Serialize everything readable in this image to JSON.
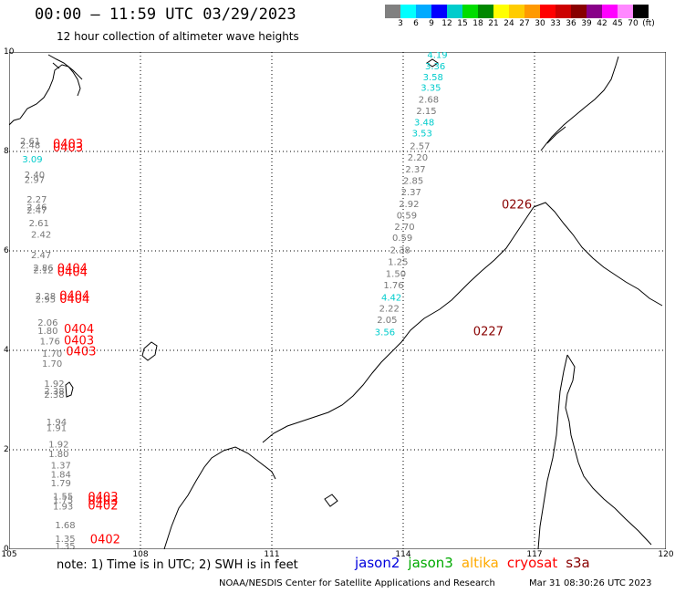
{
  "title": "00:00 – 11:59 UTC 03/29/2023",
  "subtitle": "12 hour collection of altimeter wave heights",
  "colorbar": {
    "colors": [
      "#808080",
      "#00ffff",
      "#00aaff",
      "#0000ff",
      "#00cccc",
      "#00dd00",
      "#008800",
      "#ffff00",
      "#ffcc00",
      "#ff9900",
      "#ff0000",
      "#cc0000",
      "#880000",
      "#880088",
      "#ff00ff",
      "#ff88ff",
      "#000000"
    ],
    "labels": [
      "3",
      "6",
      "9",
      "12",
      "15",
      "18",
      "21",
      "24",
      "27",
      "30",
      "33",
      "36",
      "39",
      "42",
      "45",
      "70",
      "(ft)"
    ]
  },
  "map": {
    "x_ticks": [
      "105",
      "108",
      "111",
      "114",
      "117",
      "120"
    ],
    "y_ticks": [
      "0",
      "2",
      "4",
      "6",
      "8",
      "10"
    ],
    "x_range": [
      105,
      120
    ],
    "y_range": [
      0,
      10
    ]
  },
  "readings": [
    {
      "t": "4.19",
      "lon": 114.55,
      "lat": 9.88,
      "c": "#00cccc"
    },
    {
      "t": "3.36",
      "lon": 114.5,
      "lat": 9.65,
      "c": "#00cccc"
    },
    {
      "t": "3.58",
      "lon": 114.45,
      "lat": 9.43,
      "c": "#00cccc"
    },
    {
      "t": "3.35",
      "lon": 114.4,
      "lat": 9.22,
      "c": "#00cccc"
    },
    {
      "t": "2.68",
      "lon": 114.35,
      "lat": 8.98,
      "c": "#777777"
    },
    {
      "t": "2.15",
      "lon": 114.3,
      "lat": 8.75,
      "c": "#777777"
    },
    {
      "t": "3.48",
      "lon": 114.25,
      "lat": 8.52,
      "c": "#00cccc"
    },
    {
      "t": "3.53",
      "lon": 114.2,
      "lat": 8.3,
      "c": "#00cccc"
    },
    {
      "t": "2.57",
      "lon": 114.15,
      "lat": 8.05,
      "c": "#777777"
    },
    {
      "t": "2.20",
      "lon": 114.1,
      "lat": 7.82,
      "c": "#777777"
    },
    {
      "t": "2.37",
      "lon": 114.05,
      "lat": 7.58,
      "c": "#777777"
    },
    {
      "t": "2.85",
      "lon": 114.0,
      "lat": 7.35,
      "c": "#777777"
    },
    {
      "t": "2.37",
      "lon": 113.95,
      "lat": 7.12,
      "c": "#777777"
    },
    {
      "t": "2.92",
      "lon": 113.9,
      "lat": 6.88,
      "c": "#777777"
    },
    {
      "t": "0.59",
      "lon": 113.85,
      "lat": 6.65,
      "c": "#777777"
    },
    {
      "t": "2.70",
      "lon": 113.8,
      "lat": 6.42,
      "c": "#777777"
    },
    {
      "t": "0.59",
      "lon": 113.75,
      "lat": 6.2,
      "c": "#777777"
    },
    {
      "t": "2.38",
      "lon": 113.7,
      "lat": 5.95,
      "c": "#777777"
    },
    {
      "t": "1.25",
      "lon": 113.65,
      "lat": 5.72,
      "c": "#777777"
    },
    {
      "t": "1.50",
      "lon": 113.6,
      "lat": 5.48,
      "c": "#777777"
    },
    {
      "t": "1.76",
      "lon": 113.55,
      "lat": 5.25,
      "c": "#777777"
    },
    {
      "t": "4.42",
      "lon": 113.5,
      "lat": 5.0,
      "c": "#00cccc"
    },
    {
      "t": "2.22",
      "lon": 113.45,
      "lat": 4.78,
      "c": "#777777"
    },
    {
      "t": "2.05",
      "lon": 113.4,
      "lat": 4.55,
      "c": "#777777"
    },
    {
      "t": "3.56",
      "lon": 113.35,
      "lat": 4.3,
      "c": "#00cccc"
    },
    {
      "t": "0226",
      "lon": 116.25,
      "lat": 6.85,
      "c": "#880000",
      "big": true
    },
    {
      "t": "0227",
      "lon": 115.6,
      "lat": 4.3,
      "c": "#880000",
      "big": true
    },
    {
      "t": "2.61",
      "lon": 105.25,
      "lat": 8.15,
      "c": "#777777"
    },
    {
      "t": "2.48",
      "lon": 105.25,
      "lat": 8.06,
      "c": "#777777"
    },
    {
      "t": "3.09",
      "lon": 105.3,
      "lat": 7.78,
      "c": "#00cccc"
    },
    {
      "t": "2.40",
      "lon": 105.35,
      "lat": 7.47,
      "c": "#777777"
    },
    {
      "t": "2.97",
      "lon": 105.35,
      "lat": 7.37,
      "c": "#777777"
    },
    {
      "t": "2.27",
      "lon": 105.4,
      "lat": 6.97,
      "c": "#777777"
    },
    {
      "t": "2.46",
      "lon": 105.4,
      "lat": 6.82,
      "c": "#777777"
    },
    {
      "t": "2.47",
      "lon": 105.4,
      "lat": 6.75,
      "c": "#777777"
    },
    {
      "t": "2.61",
      "lon": 105.45,
      "lat": 6.5,
      "c": "#777777"
    },
    {
      "t": "2.42",
      "lon": 105.5,
      "lat": 6.27,
      "c": "#777777"
    },
    {
      "t": "2.47",
      "lon": 105.5,
      "lat": 5.85,
      "c": "#777777"
    },
    {
      "t": "2.86",
      "lon": 105.55,
      "lat": 5.6,
      "c": "#777777"
    },
    {
      "t": "2.12",
      "lon": 105.55,
      "lat": 5.55,
      "c": "#777777"
    },
    {
      "t": "2.28",
      "lon": 105.6,
      "lat": 5.03,
      "c": "#777777"
    },
    {
      "t": "2.95",
      "lon": 105.6,
      "lat": 4.96,
      "c": "#777777"
    },
    {
      "t": "2.06",
      "lon": 105.65,
      "lat": 4.5,
      "c": "#777777"
    },
    {
      "t": "1.80",
      "lon": 105.65,
      "lat": 4.33,
      "c": "#777777"
    },
    {
      "t": "1.76",
      "lon": 105.7,
      "lat": 4.12,
      "c": "#777777"
    },
    {
      "t": "1.70",
      "lon": 105.75,
      "lat": 3.87,
      "c": "#777777"
    },
    {
      "t": "1.70",
      "lon": 105.75,
      "lat": 3.67,
      "c": "#777777"
    },
    {
      "t": "1.92",
      "lon": 105.8,
      "lat": 3.27,
      "c": "#777777"
    },
    {
      "t": "2.38",
      "lon": 105.8,
      "lat": 3.12,
      "c": "#777777"
    },
    {
      "t": "2.38",
      "lon": 105.8,
      "lat": 3.05,
      "c": "#777777"
    },
    {
      "t": "1.94",
      "lon": 105.85,
      "lat": 2.5,
      "c": "#777777"
    },
    {
      "t": "1.91",
      "lon": 105.85,
      "lat": 2.38,
      "c": "#777777"
    },
    {
      "t": "1.92",
      "lon": 105.9,
      "lat": 2.05,
      "c": "#777777"
    },
    {
      "t": "1.80",
      "lon": 105.9,
      "lat": 1.85,
      "c": "#777777"
    },
    {
      "t": "1.37",
      "lon": 105.95,
      "lat": 1.62,
      "c": "#777777"
    },
    {
      "t": "1.84",
      "lon": 105.95,
      "lat": 1.44,
      "c": "#777777"
    },
    {
      "t": "1.79",
      "lon": 105.95,
      "lat": 1.27,
      "c": "#777777"
    },
    {
      "t": "1.55",
      "lon": 106.0,
      "lat": 1.0,
      "c": "#777777"
    },
    {
      "t": "1.75",
      "lon": 106.0,
      "lat": 0.93,
      "c": "#777777"
    },
    {
      "t": "1.93",
      "lon": 106.0,
      "lat": 0.8,
      "c": "#777777"
    },
    {
      "t": "1.68",
      "lon": 106.05,
      "lat": 0.42,
      "c": "#777777"
    },
    {
      "t": "1.35",
      "lon": 106.05,
      "lat": 0.15,
      "c": "#777777"
    },
    {
      "t": "1.35",
      "lon": 106.05,
      "lat": 0.0,
      "c": "#777777"
    },
    {
      "t": "0403",
      "lon": 106.0,
      "lat": 8.07,
      "c": "#ff0000",
      "big": true
    },
    {
      "t": "0403",
      "lon": 106.0,
      "lat": 8.0,
      "c": "#ff0000",
      "big": true
    },
    {
      "t": "0404",
      "lon": 106.1,
      "lat": 5.57,
      "c": "#ff0000",
      "big": true
    },
    {
      "t": "0404",
      "lon": 106.1,
      "lat": 5.5,
      "c": "#ff0000",
      "big": true
    },
    {
      "t": "0404",
      "lon": 106.15,
      "lat": 5.02,
      "c": "#ff0000",
      "big": true
    },
    {
      "t": "0404",
      "lon": 106.15,
      "lat": 4.95,
      "c": "#ff0000",
      "big": true
    },
    {
      "t": "0404",
      "lon": 106.25,
      "lat": 4.35,
      "c": "#ff0000",
      "big": true
    },
    {
      "t": "0403",
      "lon": 106.25,
      "lat": 4.12,
      "c": "#ff0000",
      "big": true
    },
    {
      "t": "0403",
      "lon": 106.3,
      "lat": 3.9,
      "c": "#ff0000",
      "big": true
    },
    {
      "t": "0403",
      "lon": 106.8,
      "lat": 0.97,
      "c": "#ff0000",
      "big": true
    },
    {
      "t": "0403",
      "lon": 106.8,
      "lat": 0.9,
      "c": "#ff0000",
      "big": true
    },
    {
      "t": "0402",
      "lon": 106.8,
      "lat": 0.8,
      "c": "#ff0000",
      "big": true
    },
    {
      "t": "0402",
      "lon": 106.85,
      "lat": 0.12,
      "c": "#ff0000",
      "big": true
    }
  ],
  "note": "note: 1) Time is in UTC; 2) SWH is in feet",
  "satellites": [
    {
      "name": "jason2",
      "color": "#0000dd"
    },
    {
      "name": "jason3",
      "color": "#00aa00"
    },
    {
      "name": "altika",
      "color": "#ffaa00"
    },
    {
      "name": "cryosat",
      "color": "#ff0000"
    },
    {
      "name": "s3a",
      "color": "#880000"
    }
  ],
  "credit": "NOAA/NESDIS Center for Satellite Applications and Research",
  "generated": "Mar 31 08:30:26 UTC 2023"
}
